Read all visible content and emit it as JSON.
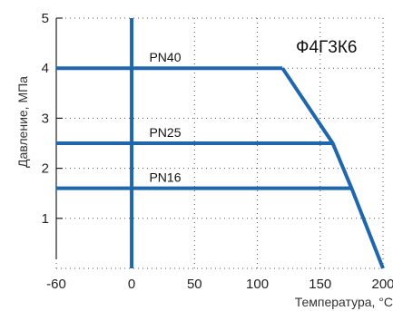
{
  "chart_data": {
    "type": "line",
    "title": "Ф4Г3К6",
    "xlabel": "Температура, °С",
    "ylabel": "Давление, МПа",
    "xlim": [
      -60,
      200
    ],
    "ylim": [
      0,
      5
    ],
    "x_ticks": [
      -60,
      0,
      50,
      100,
      150,
      200
    ],
    "y_ticks": [
      1,
      2,
      3,
      4,
      5
    ],
    "grid": "dotted",
    "series_color": "#1f66ad",
    "series": [
      {
        "name": "PN40",
        "x": [
          -60,
          120
        ],
        "y": [
          4.0,
          4.0
        ]
      },
      {
        "name": "PN25",
        "x": [
          -60,
          160
        ],
        "y": [
          2.5,
          2.5
        ]
      },
      {
        "name": "PN16",
        "x": [
          -60,
          175
        ],
        "y": [
          1.6,
          1.6
        ]
      },
      {
        "x": [
          120,
          160,
          175,
          200
        ],
        "y": [
          4.0,
          2.5,
          1.6,
          0.0
        ]
      },
      {
        "x": [
          0,
          0
        ],
        "y": [
          0,
          5
        ]
      }
    ]
  }
}
